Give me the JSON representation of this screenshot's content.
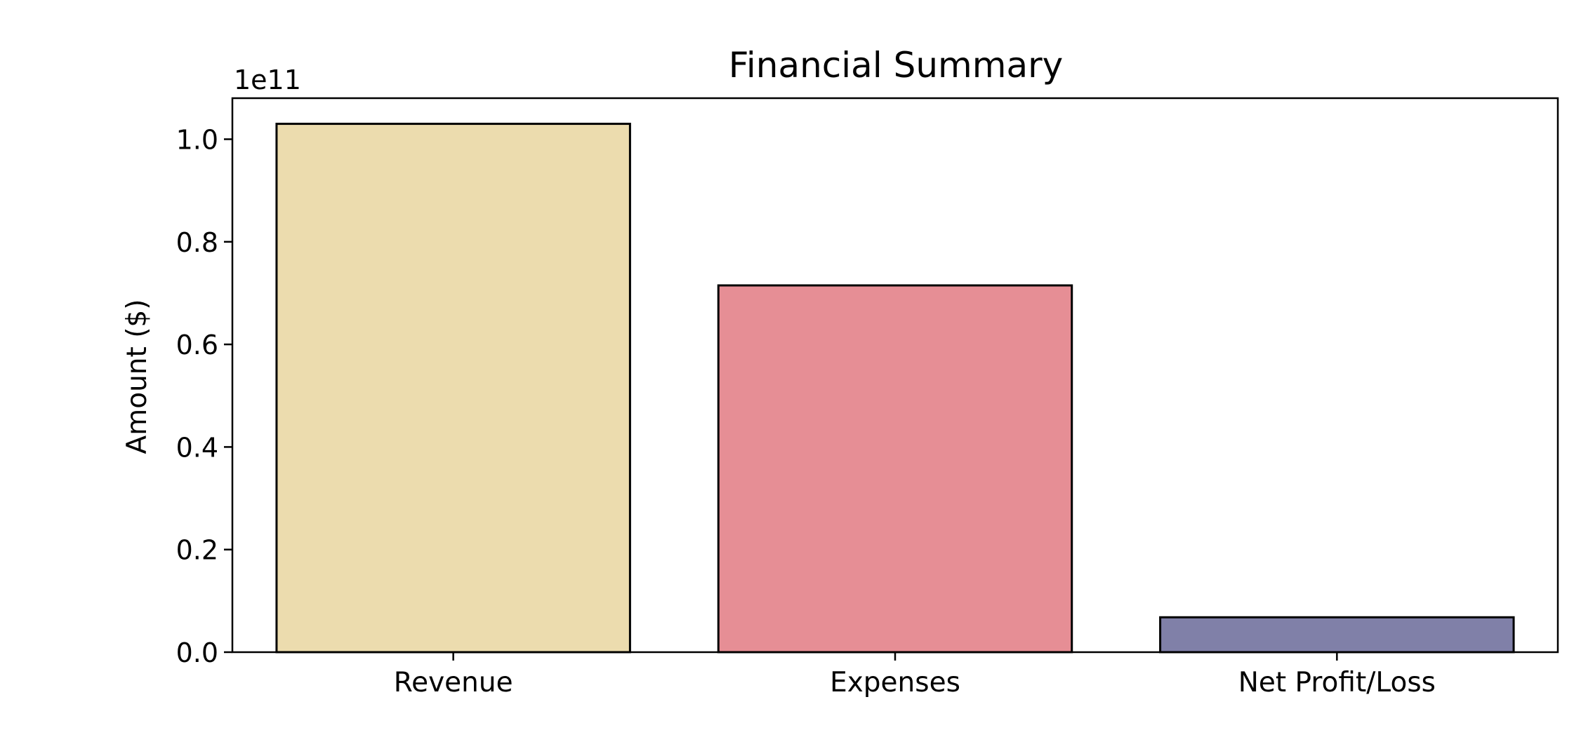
{
  "chart_data": {
    "type": "bar",
    "title": "Financial Summary",
    "xlabel": "",
    "ylabel": "Amount ($)",
    "offset_label": "1e11",
    "categories": [
      "Revenue",
      "Expenses",
      "Net Profit/Loss"
    ],
    "values": [
      103000000000,
      71500000000,
      6800000000
    ],
    "colors": [
      "#ecdcae",
      "#e68e95",
      "#8080a8"
    ],
    "ylim": [
      0,
      108000000000
    ],
    "yticks": [
      0,
      20000000000,
      40000000000,
      60000000000,
      80000000000,
      100000000000
    ],
    "ytick_labels": [
      "0.0",
      "0.2",
      "0.4",
      "0.6",
      "0.8",
      "1.0"
    ],
    "grid": false,
    "legend": "none"
  }
}
